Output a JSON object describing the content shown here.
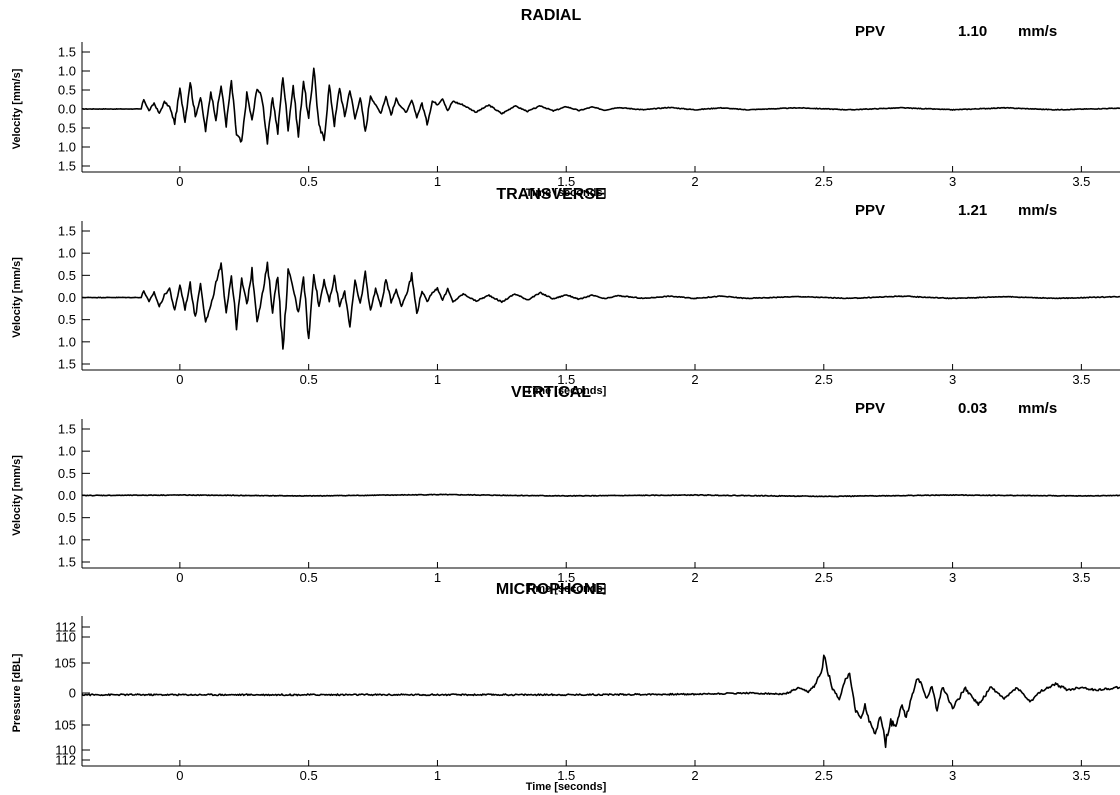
{
  "chart_data": [
    {
      "type": "line",
      "title": "RADIAL",
      "ppv_label": "PPV",
      "ppv_value": "1.10",
      "ppv_unit": "mm/s",
      "xlabel": "Time [seconds]",
      "ylabel": "Velocity [mm/s]",
      "xlim": [
        -0.38,
        3.65
      ],
      "ylim": [
        -1.6,
        1.6
      ],
      "xticks": [
        "0",
        "0.5",
        "1",
        "1.5",
        "2",
        "2.5",
        "3",
        "3.5"
      ],
      "yticks": [
        "1.5",
        "1.0",
        "0.5",
        "0.0",
        "0.5",
        "1.0",
        "1.5"
      ],
      "series": [
        {
          "x": [
            -0.38,
            -0.15,
            -0.14,
            -0.12,
            -0.1,
            -0.08,
            -0.06,
            -0.04,
            -0.02,
            0.0,
            0.02,
            0.04,
            0.06,
            0.08,
            0.1,
            0.12,
            0.14,
            0.16,
            0.18,
            0.2,
            0.22,
            0.24,
            0.26,
            0.28,
            0.3,
            0.32,
            0.34,
            0.36,
            0.38,
            0.4,
            0.42,
            0.44,
            0.46,
            0.48,
            0.5,
            0.52,
            0.54,
            0.56,
            0.58,
            0.6,
            0.62,
            0.64,
            0.66,
            0.68,
            0.7,
            0.72,
            0.74,
            0.76,
            0.78,
            0.8,
            0.82,
            0.84,
            0.86,
            0.88,
            0.9,
            0.92,
            0.94,
            0.96,
            0.98,
            1.0,
            1.02,
            1.04,
            1.06,
            1.1,
            1.15,
            1.2,
            1.25,
            1.3,
            1.35,
            1.4,
            1.45,
            1.5,
            1.55,
            1.6,
            1.65,
            1.7,
            1.8,
            1.9,
            2.0,
            2.1,
            2.2,
            2.4,
            2.6,
            2.8,
            3.0,
            3.2,
            3.4,
            3.65
          ],
          "y": [
            0.0,
            0.0,
            0.25,
            -0.05,
            0.15,
            -0.12,
            0.18,
            0.05,
            -0.35,
            0.5,
            -0.3,
            0.7,
            -0.2,
            0.3,
            -0.55,
            0.45,
            -0.25,
            0.6,
            -0.4,
            0.7,
            -0.65,
            -0.88,
            0.4,
            -0.3,
            0.55,
            0.25,
            -0.85,
            0.3,
            -0.6,
            0.85,
            -0.5,
            0.6,
            -0.7,
            0.75,
            -0.3,
            1.1,
            -0.45,
            -0.78,
            0.6,
            -0.4,
            0.55,
            -0.2,
            0.5,
            -0.25,
            0.3,
            -0.6,
            0.35,
            0.1,
            -0.1,
            0.32,
            -0.15,
            0.25,
            0.05,
            -0.1,
            0.22,
            -0.2,
            0.15,
            -0.38,
            0.2,
            0.12,
            0.28,
            -0.05,
            0.2,
            0.1,
            -0.08,
            0.1,
            -0.12,
            0.08,
            -0.06,
            0.08,
            -0.05,
            0.06,
            -0.04,
            0.05,
            -0.03,
            0.04,
            -0.02,
            0.04,
            -0.02,
            0.03,
            -0.02,
            0.03,
            -0.02,
            0.03,
            -0.02,
            0.03,
            -0.02,
            0.02
          ]
        }
      ]
    },
    {
      "type": "line",
      "title": "TRANSVERSE",
      "ppv_label": "PPV",
      "ppv_value": "1.21",
      "ppv_unit": "mm/s",
      "xlabel": "Time [seconds]",
      "ylabel": "Velocity [mm/s]",
      "xlim": [
        -0.38,
        3.65
      ],
      "ylim": [
        -1.6,
        1.6
      ],
      "xticks": [
        "0",
        "0.5",
        "1",
        "1.5",
        "2",
        "2.5",
        "3",
        "3.5"
      ],
      "yticks": [
        "1.5",
        "1.0",
        "0.5",
        "0.0",
        "0.5",
        "1.0",
        "1.5"
      ],
      "series": [
        {
          "x": [
            -0.38,
            -0.15,
            -0.14,
            -0.12,
            -0.1,
            -0.08,
            -0.06,
            -0.04,
            -0.02,
            0.0,
            0.02,
            0.04,
            0.06,
            0.08,
            0.1,
            0.12,
            0.14,
            0.16,
            0.18,
            0.2,
            0.22,
            0.24,
            0.26,
            0.28,
            0.3,
            0.32,
            0.34,
            0.36,
            0.38,
            0.4,
            0.42,
            0.44,
            0.46,
            0.48,
            0.5,
            0.52,
            0.54,
            0.56,
            0.58,
            0.6,
            0.62,
            0.64,
            0.66,
            0.68,
            0.7,
            0.72,
            0.74,
            0.76,
            0.78,
            0.8,
            0.82,
            0.84,
            0.86,
            0.88,
            0.9,
            0.92,
            0.94,
            0.96,
            0.98,
            1.0,
            1.02,
            1.04,
            1.06,
            1.1,
            1.15,
            1.2,
            1.25,
            1.3,
            1.35,
            1.4,
            1.45,
            1.5,
            1.55,
            1.6,
            1.65,
            1.7,
            1.8,
            1.9,
            2.0,
            2.1,
            2.2,
            2.4,
            2.6,
            2.8,
            3.0,
            3.2,
            3.4,
            3.65
          ],
          "y": [
            0.0,
            0.0,
            0.15,
            -0.1,
            0.12,
            -0.2,
            0.05,
            0.2,
            -0.3,
            0.28,
            -0.25,
            0.3,
            -0.45,
            0.35,
            -0.55,
            -0.2,
            0.3,
            0.7,
            -0.3,
            0.5,
            -0.65,
            0.4,
            -0.15,
            0.6,
            -0.5,
            0.05,
            0.72,
            -0.3,
            0.55,
            -1.21,
            0.6,
            0.2,
            -0.35,
            0.5,
            -0.95,
            0.55,
            -0.2,
            0.4,
            -0.1,
            0.45,
            -0.2,
            0.15,
            -0.62,
            0.35,
            -0.15,
            0.55,
            -0.3,
            0.2,
            -0.2,
            0.4,
            -0.1,
            0.18,
            -0.2,
            0.1,
            0.5,
            -0.35,
            0.15,
            -0.1,
            0.12,
            0.2,
            -0.05,
            0.18,
            -0.1,
            0.08,
            -0.08,
            0.05,
            -0.1,
            0.08,
            -0.05,
            0.1,
            -0.03,
            0.06,
            -0.04,
            0.05,
            -0.03,
            0.04,
            -0.02,
            0.03,
            -0.02,
            0.03,
            -0.02,
            0.02,
            -0.02,
            0.03,
            -0.02,
            0.02,
            -0.02,
            0.02
          ]
        }
      ]
    },
    {
      "type": "line",
      "title": "VERTICAL",
      "ppv_label": "PPV",
      "ppv_value": "0.03",
      "ppv_unit": "mm/s",
      "xlabel": "Time [seconds]",
      "ylabel": "Velocity [mm/s]",
      "xlim": [
        -0.38,
        3.65
      ],
      "ylim": [
        -1.6,
        1.6
      ],
      "xticks": [
        "0",
        "0.5",
        "1",
        "1.5",
        "2",
        "2.5",
        "3",
        "3.5"
      ],
      "yticks": [
        "1.5",
        "1.0",
        "0.5",
        "0.0",
        "0.5",
        "1.0",
        "1.5"
      ],
      "series": [
        {
          "x": [
            -0.38,
            0.0,
            0.5,
            1.0,
            1.5,
            2.0,
            2.5,
            3.0,
            3.5,
            3.65
          ],
          "y": [
            0.0,
            0.01,
            -0.01,
            0.02,
            -0.01,
            0.01,
            -0.02,
            0.01,
            -0.01,
            0.0
          ]
        }
      ]
    },
    {
      "type": "line",
      "title": "MICROPHONE",
      "xlabel": "Time [seconds]",
      "ylabel": "Pressure [dBL]",
      "xlim": [
        -0.38,
        3.65
      ],
      "ylim": [
        -1.25,
        1.25
      ],
      "xticks": [
        "0",
        "0.5",
        "1",
        "1.5",
        "2",
        "2.5",
        "3",
        "3.5"
      ],
      "yticks": [
        "112",
        "110",
        "105",
        "0",
        "105",
        "110",
        "112"
      ],
      "series": [
        {
          "x": [
            -0.38,
            0.5,
            1.0,
            1.5,
            2.0,
            2.2,
            2.35,
            2.4,
            2.44,
            2.47,
            2.49,
            2.5,
            2.51,
            2.53,
            2.56,
            2.58,
            2.6,
            2.62,
            2.64,
            2.66,
            2.68,
            2.7,
            2.72,
            2.74,
            2.76,
            2.78,
            2.8,
            2.82,
            2.84,
            2.86,
            2.88,
            2.9,
            2.92,
            2.94,
            2.96,
            2.98,
            3.0,
            3.05,
            3.1,
            3.15,
            3.2,
            3.25,
            3.3,
            3.35,
            3.4,
            3.45,
            3.5,
            3.55,
            3.6,
            3.65
          ],
          "y": [
            -0.03,
            -0.03,
            -0.03,
            -0.03,
            -0.02,
            0.0,
            -0.02,
            0.08,
            0.02,
            0.15,
            0.35,
            0.65,
            0.5,
            0.1,
            -0.1,
            0.2,
            0.35,
            -0.25,
            -0.45,
            -0.2,
            -0.55,
            -0.65,
            -0.45,
            -0.85,
            -0.5,
            -0.6,
            -0.2,
            -0.4,
            -0.1,
            0.25,
            0.15,
            -0.1,
            0.12,
            -0.3,
            0.1,
            -0.05,
            -0.25,
            0.08,
            -0.2,
            0.1,
            -0.1,
            0.1,
            -0.15,
            0.05,
            0.15,
            0.05,
            0.1,
            0.05,
            0.07,
            0.1
          ]
        }
      ]
    }
  ]
}
